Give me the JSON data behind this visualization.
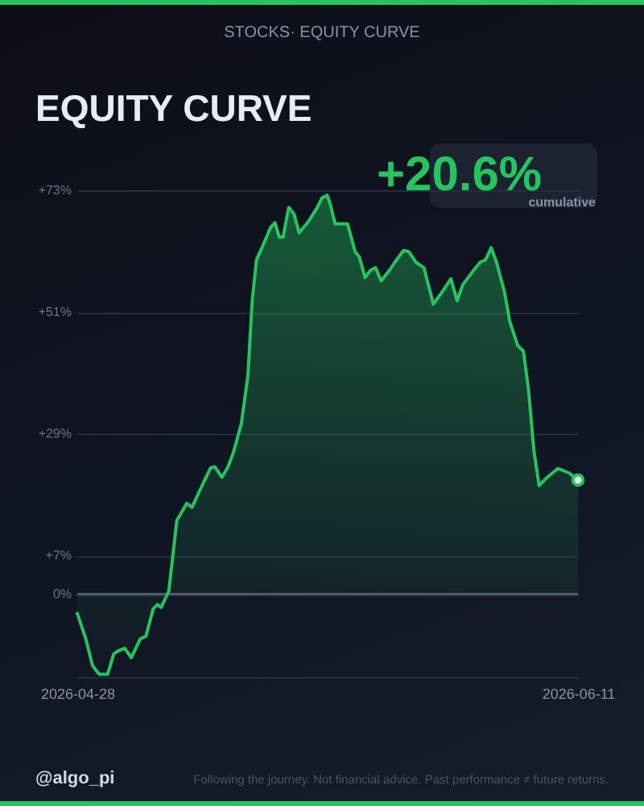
{
  "chart_data": {
    "type": "area",
    "title": "EQUITY CURVE",
    "subtitle": "STOCKS· EQUITY CURVE",
    "annotations": [
      "+20.6%",
      "cumulative",
      "@algo_pi",
      "Following the journey. Not financial advice. Past performance ≠ future returns."
    ],
    "xlim": [
      "2026-04-28",
      "2026-06-11"
    ],
    "xticks": [
      "2026-04-28",
      "2026-06-11"
    ],
    "ylim": [
      -15,
      73
    ],
    "yticks": [
      {
        "value": 0,
        "label": "0%"
      },
      {
        "value": 7,
        "label": "+7%"
      },
      {
        "value": 29,
        "label": "+29%"
      },
      {
        "value": 51,
        "label": "+51%"
      },
      {
        "value": 73,
        "label": "+73%"
      }
    ],
    "grid": "y",
    "ref_lines": [
      {
        "axis": "y",
        "value": 0,
        "color": "#5a6272"
      }
    ],
    "series": [
      {
        "color": "#22c55e",
        "x": [
          "2026-04-28T00:00",
          "2026-04-28T18:00",
          "2026-04-29T08:00",
          "2026-04-29T22:00",
          "2026-04-30T16:00",
          "2026-05-01T05:00",
          "2026-05-01T16:00",
          "2026-05-02T04:00",
          "2026-05-02T18:00",
          "2026-05-03T13:00",
          "2026-05-04T01:00",
          "2026-05-04T16:00",
          "2026-05-05T01:00",
          "2026-05-05T09:00",
          "2026-05-06T01:00",
          "2026-05-06T18:00",
          "2026-05-07T15:00",
          "2026-05-08T02:00",
          "2026-05-08T21:00",
          "2026-05-09T17:00",
          "2026-05-10T02:00",
          "2026-05-10T17:00",
          "2026-05-11T06:00",
          "2026-05-11T17:00",
          "2026-05-12T10:00",
          "2026-05-13T00:00",
          "2026-05-13T09:00",
          "2026-05-13T18:00",
          "2026-05-14T07:00",
          "2026-05-15T00:00",
          "2026-05-15T09:00",
          "2026-05-15T18:00",
          "2026-05-16T02:00",
          "2026-05-16T14:00",
          "2026-05-17T01:00",
          "2026-05-17T12:00",
          "2026-05-18T08:00",
          "2026-05-19T01:00",
          "2026-05-19T12:00",
          "2026-05-19T23:00",
          "2026-05-20T05:00",
          "2026-05-20T16:00",
          "2026-05-21T09:00",
          "2026-05-21T18:00",
          "2026-05-22T10:00",
          "2026-05-22T19:00",
          "2026-05-23T07:00",
          "2026-05-23T18:00",
          "2026-05-24T05:00",
          "2026-05-24T17:00",
          "2026-05-25T10:00",
          "2026-05-26T03:00",
          "2026-05-26T16:00",
          "2026-05-27T03:00",
          "2026-05-27T18:00",
          "2026-05-28T11:00",
          "2026-05-29T07:00",
          "2026-05-29T23:00",
          "2026-05-30T20:00",
          "2026-05-31T09:00",
          "2026-05-31T21:00",
          "2026-06-01T17:00",
          "2026-06-02T10:00",
          "2026-06-02T21:00",
          "2026-06-03T09:00",
          "2026-06-03T20:00",
          "2026-06-04T13:00",
          "2026-06-05T00:00",
          "2026-06-05T17:00",
          "2026-06-06T05:00",
          "2026-06-06T16:00",
          "2026-06-07T03:00",
          "2026-06-07T14:00",
          "2026-06-08T07:00",
          "2026-06-09T06:00",
          "2026-06-10T05:00",
          "2026-06-11T00:00"
        ],
        "values": [
          -3.5,
          -8.1,
          -12.9,
          -14.5,
          -14.5,
          -10.8,
          -10.2,
          -9.8,
          -11.5,
          -8.1,
          -7.6,
          -2.7,
          -1.9,
          -2.4,
          0.5,
          13.3,
          16.4,
          15.7,
          19.2,
          22.8,
          23.0,
          21.1,
          23.0,
          25.5,
          30.8,
          39.6,
          53.1,
          60.4,
          62.9,
          66.3,
          67.1,
          64.5,
          64.5,
          69.9,
          68.7,
          65.3,
          67.4,
          69.7,
          71.6,
          72.1,
          70.6,
          66.9,
          66.9,
          66.9,
          61.9,
          60.9,
          57.2,
          58.5,
          59.0,
          56.6,
          58.5,
          60.6,
          62.1,
          61.9,
          60.0,
          59.0,
          52.4,
          54.3,
          57.0,
          53.0,
          55.9,
          58.2,
          60.0,
          60.4,
          62.6,
          60.0,
          54.6,
          49.3,
          44.9,
          43.9,
          36.6,
          25.9,
          19.6,
          21.1,
          22.7,
          21.9,
          20.6
        ]
      },
      {
        "type": "scatter",
        "color": "#e8ffe8",
        "marker": "circle",
        "x": [
          "2026-06-11T00:00"
        ],
        "values": [
          20.6
        ]
      }
    ]
  }
}
